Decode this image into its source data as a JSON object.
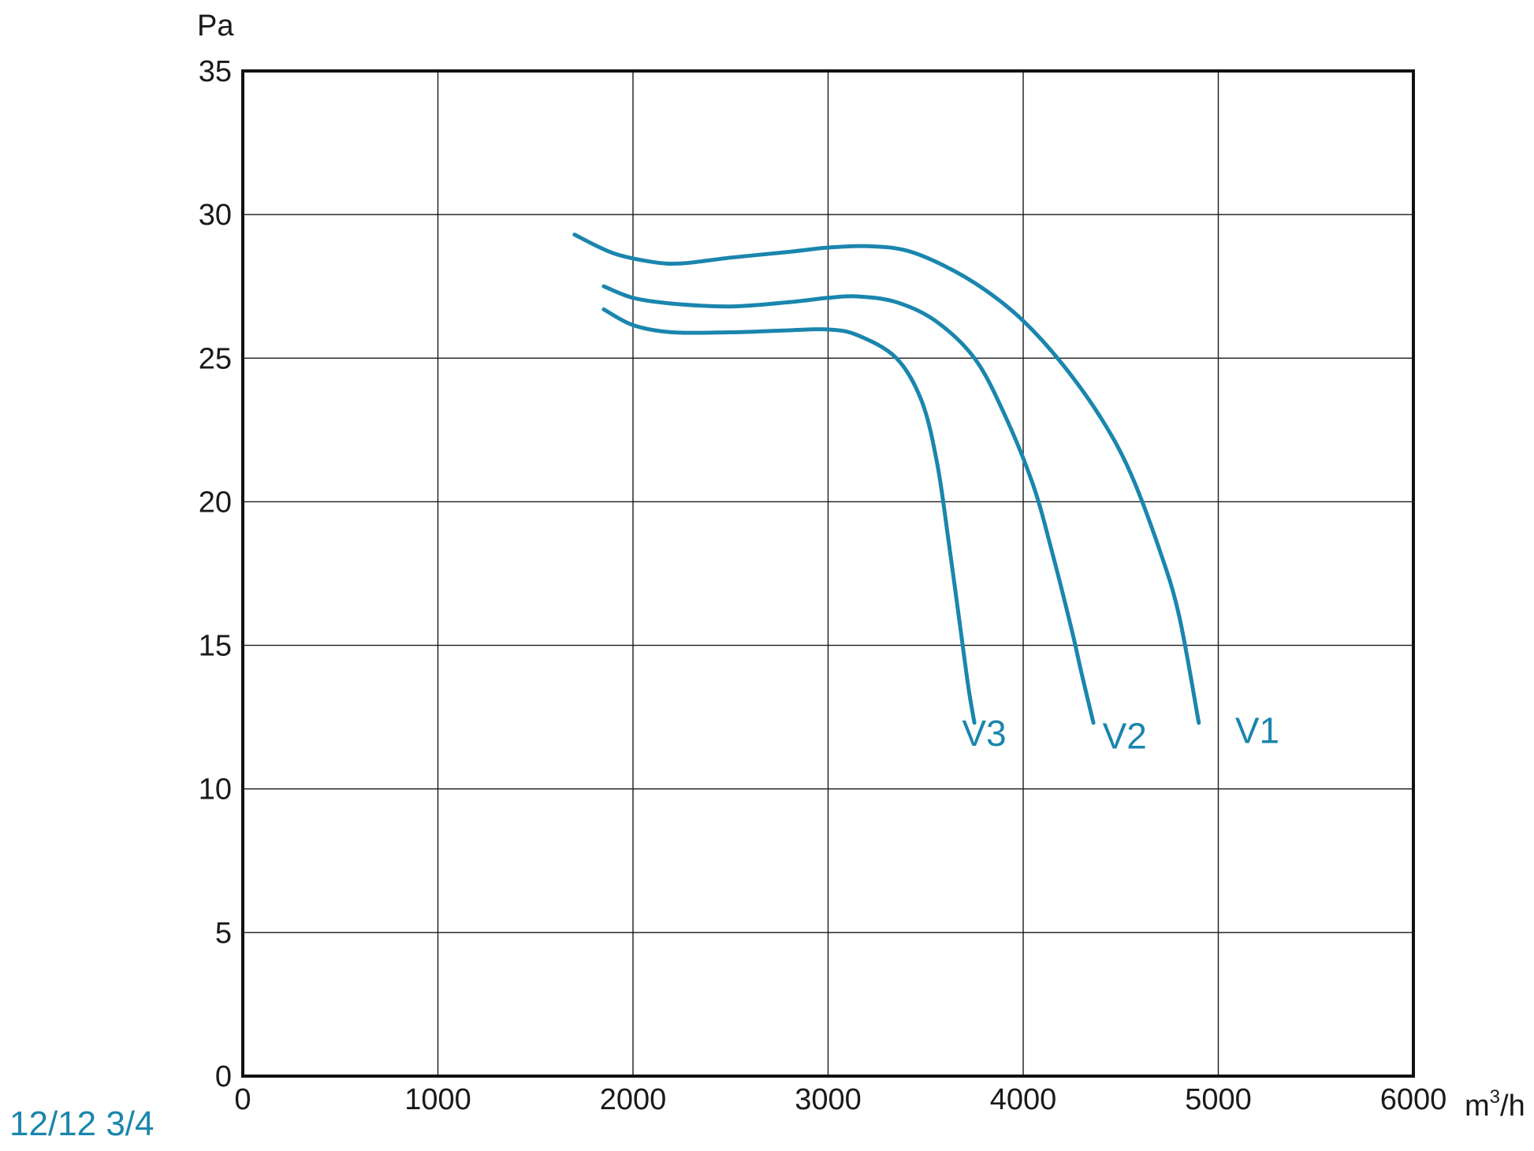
{
  "chart_data": {
    "type": "line",
    "title": "",
    "caption": "12/12 3/4",
    "xlabel": "m3/h",
    "ylabel": "Pa",
    "xlim": [
      0,
      6000
    ],
    "ylim": [
      0,
      35
    ],
    "xticks": [
      0,
      1000,
      2000,
      3000,
      4000,
      5000,
      6000
    ],
    "yticks": [
      0,
      5,
      10,
      15,
      20,
      25,
      30,
      35
    ],
    "grid": true,
    "legend": "inline-labels",
    "line_color": "#1a86ad",
    "series": [
      {
        "name": "V1",
        "points": [
          [
            1700,
            29.3
          ],
          [
            1900,
            28.65
          ],
          [
            2100,
            28.35
          ],
          [
            2250,
            28.3
          ],
          [
            2500,
            28.5
          ],
          [
            2800,
            28.7
          ],
          [
            3000,
            28.85
          ],
          [
            3200,
            28.9
          ],
          [
            3400,
            28.75
          ],
          [
            3600,
            28.2
          ],
          [
            3800,
            27.4
          ],
          [
            4000,
            26.3
          ],
          [
            4200,
            24.8
          ],
          [
            4400,
            22.9
          ],
          [
            4550,
            21.0
          ],
          [
            4700,
            18.3
          ],
          [
            4800,
            16.0
          ],
          [
            4900,
            12.3
          ]
        ]
      },
      {
        "name": "V2",
        "points": [
          [
            1850,
            27.5
          ],
          [
            2000,
            27.1
          ],
          [
            2200,
            26.9
          ],
          [
            2500,
            26.8
          ],
          [
            2800,
            26.95
          ],
          [
            3000,
            27.1
          ],
          [
            3150,
            27.15
          ],
          [
            3350,
            26.95
          ],
          [
            3550,
            26.3
          ],
          [
            3750,
            25.0
          ],
          [
            3900,
            23.1
          ],
          [
            4050,
            20.6
          ],
          [
            4150,
            18.2
          ],
          [
            4250,
            15.5
          ],
          [
            4300,
            14.0
          ],
          [
            4360,
            12.3
          ]
        ]
      },
      {
        "name": "V3",
        "points": [
          [
            1850,
            26.7
          ],
          [
            2000,
            26.15
          ],
          [
            2200,
            25.9
          ],
          [
            2500,
            25.9
          ],
          [
            2800,
            25.97
          ],
          [
            3000,
            26.0
          ],
          [
            3150,
            25.8
          ],
          [
            3350,
            25.0
          ],
          [
            3480,
            23.5
          ],
          [
            3560,
            21.3
          ],
          [
            3620,
            18.5
          ],
          [
            3680,
            15.5
          ],
          [
            3720,
            13.5
          ],
          [
            3750,
            12.3
          ]
        ]
      }
    ],
    "series_labels": [
      {
        "name": "V1",
        "x": 5200,
        "y": 11.6
      },
      {
        "name": "V2",
        "x": 4520,
        "y": 11.4
      },
      {
        "name": "V3",
        "x": 3800,
        "y": 11.5
      }
    ]
  }
}
